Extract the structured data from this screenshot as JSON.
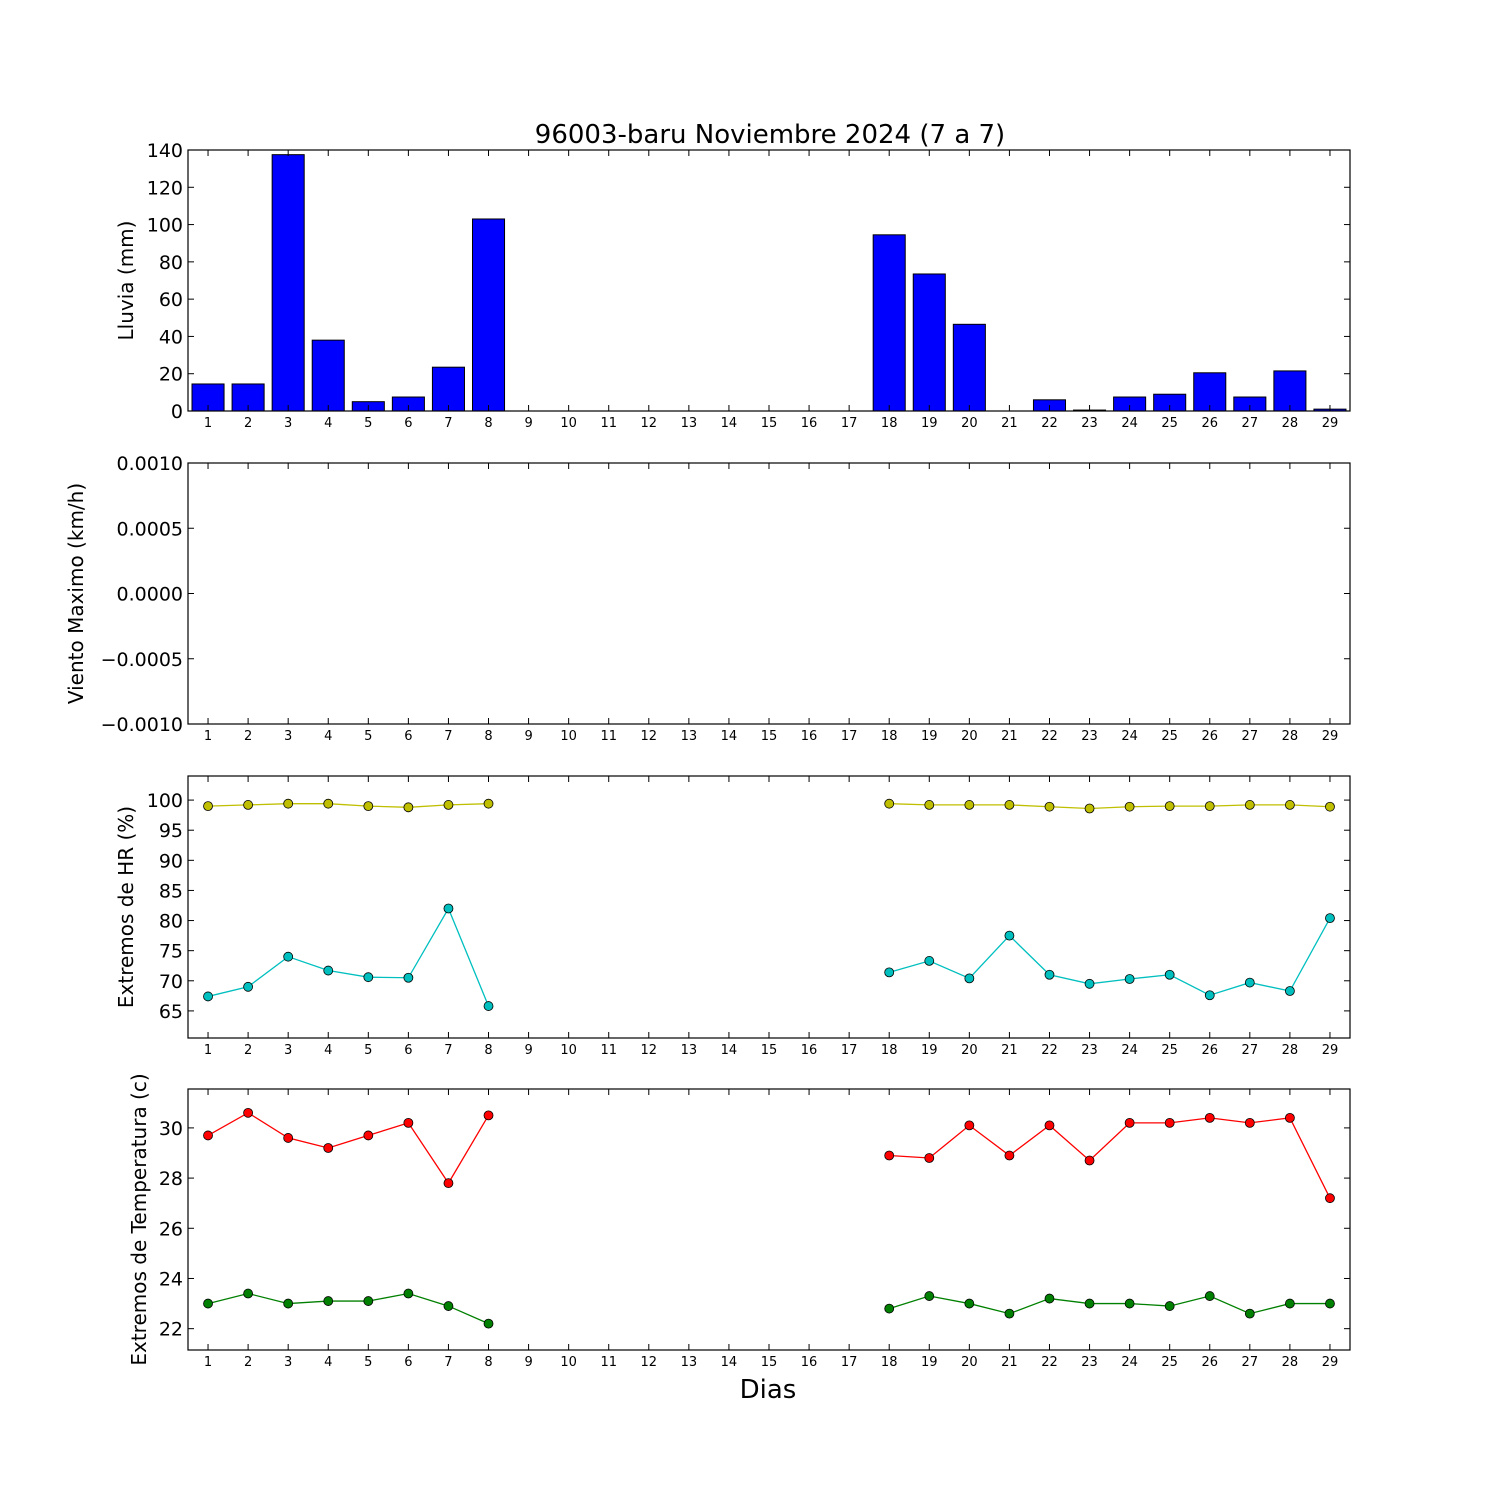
{
  "chart_data": [
    {
      "type": "bar",
      "title": "96003-baru Noviembre 2024  (7 a 7)",
      "ylabel": "Lluvia (mm)",
      "categories": [
        "1",
        "2",
        "3",
        "4",
        "5",
        "6",
        "7",
        "8",
        "9",
        "10",
        "11",
        "12",
        "13",
        "14",
        "15",
        "16",
        "17",
        "18",
        "19",
        "20",
        "21",
        "22",
        "23",
        "24",
        "25",
        "26",
        "27",
        "28",
        "29"
      ],
      "values": [
        14.5,
        14.5,
        137.5,
        38,
        5,
        7.5,
        23.5,
        103,
        null,
        null,
        null,
        null,
        null,
        null,
        null,
        null,
        null,
        94.5,
        73.5,
        46.5,
        0,
        6,
        0.5,
        7.5,
        9,
        20.5,
        7.5,
        21.5,
        1
      ],
      "color": "#0000ff",
      "ylim": [
        0,
        140
      ],
      "yticks": [
        "0",
        "20",
        "40",
        "60",
        "80",
        "100",
        "120",
        "140"
      ],
      "yticks_values": [
        0,
        20,
        40,
        60,
        80,
        100,
        120,
        140
      ]
    },
    {
      "type": "line",
      "ylabel": "Viento Maximo (km/h)",
      "categories": [
        "1",
        "2",
        "3",
        "4",
        "5",
        "6",
        "7",
        "8",
        "9",
        "10",
        "11",
        "12",
        "13",
        "14",
        "15",
        "16",
        "17",
        "18",
        "19",
        "20",
        "21",
        "22",
        "23",
        "24",
        "25",
        "26",
        "27",
        "28",
        "29"
      ],
      "series": [],
      "ylim": [
        -0.001,
        0.001
      ],
      "yticks": [
        "−0.0010",
        "−0.0005",
        "0.0000",
        "0.0005",
        "0.0010"
      ],
      "yticks_values": [
        -0.001,
        -0.0005,
        0,
        0.0005,
        0.001
      ]
    },
    {
      "type": "line",
      "ylabel": "Extremos de HR (%)",
      "categories": [
        "1",
        "2",
        "3",
        "4",
        "5",
        "6",
        "7",
        "8",
        "9",
        "10",
        "11",
        "12",
        "13",
        "14",
        "15",
        "16",
        "17",
        "18",
        "19",
        "20",
        "21",
        "22",
        "23",
        "24",
        "25",
        "26",
        "27",
        "28",
        "29"
      ],
      "series": [
        {
          "color": "#bfbf00",
          "values": [
            99,
            99.2,
            99.4,
            99.4,
            99,
            98.8,
            99.2,
            99.4,
            null,
            null,
            null,
            null,
            null,
            null,
            null,
            null,
            null,
            99.4,
            99.2,
            99.2,
            99.2,
            98.9,
            98.6,
            98.9,
            99,
            99,
            99.2,
            99.2,
            98.9
          ]
        },
        {
          "color": "#00bfbf",
          "values": [
            67.4,
            69,
            74,
            71.7,
            70.6,
            70.5,
            82,
            65.8,
            null,
            null,
            null,
            null,
            null,
            null,
            null,
            null,
            null,
            71.4,
            73.3,
            70.4,
            77.5,
            71,
            69.5,
            70.3,
            71,
            67.6,
            69.7,
            68.3,
            80.4
          ]
        }
      ],
      "ylim": [
        60.5,
        104
      ],
      "yticks": [
        "65",
        "70",
        "75",
        "80",
        "85",
        "90",
        "95",
        "100"
      ],
      "yticks_values": [
        65,
        70,
        75,
        80,
        85,
        90,
        95,
        100
      ]
    },
    {
      "type": "line",
      "ylabel": "Extremos de Temperatura (c)",
      "xlabel": "Dias",
      "categories": [
        "1",
        "2",
        "3",
        "4",
        "5",
        "6",
        "7",
        "8",
        "9",
        "10",
        "11",
        "12",
        "13",
        "14",
        "15",
        "16",
        "17",
        "18",
        "19",
        "20",
        "21",
        "22",
        "23",
        "24",
        "25",
        "26",
        "27",
        "28",
        "29"
      ],
      "series": [
        {
          "color": "#ff0000",
          "values": [
            29.7,
            30.6,
            29.6,
            29.2,
            29.7,
            30.2,
            27.8,
            30.5,
            null,
            null,
            null,
            null,
            null,
            null,
            null,
            null,
            null,
            28.9,
            28.8,
            30.1,
            28.9,
            30.1,
            28.7,
            30.2,
            30.2,
            30.4,
            30.2,
            30.4,
            27.2
          ]
        },
        {
          "color": "#008000",
          "values": [
            23,
            23.4,
            23,
            23.1,
            23.1,
            23.4,
            22.9,
            22.2,
            null,
            null,
            null,
            null,
            null,
            null,
            null,
            null,
            null,
            22.8,
            23.3,
            23,
            22.6,
            23.2,
            23,
            23,
            22.9,
            23.3,
            22.6,
            23,
            23
          ]
        }
      ],
      "ylim": [
        21.15,
        31.55
      ],
      "yticks": [
        "22",
        "24",
        "26",
        "28",
        "30"
      ],
      "yticks_values": [
        22,
        24,
        26,
        28,
        30
      ]
    }
  ]
}
